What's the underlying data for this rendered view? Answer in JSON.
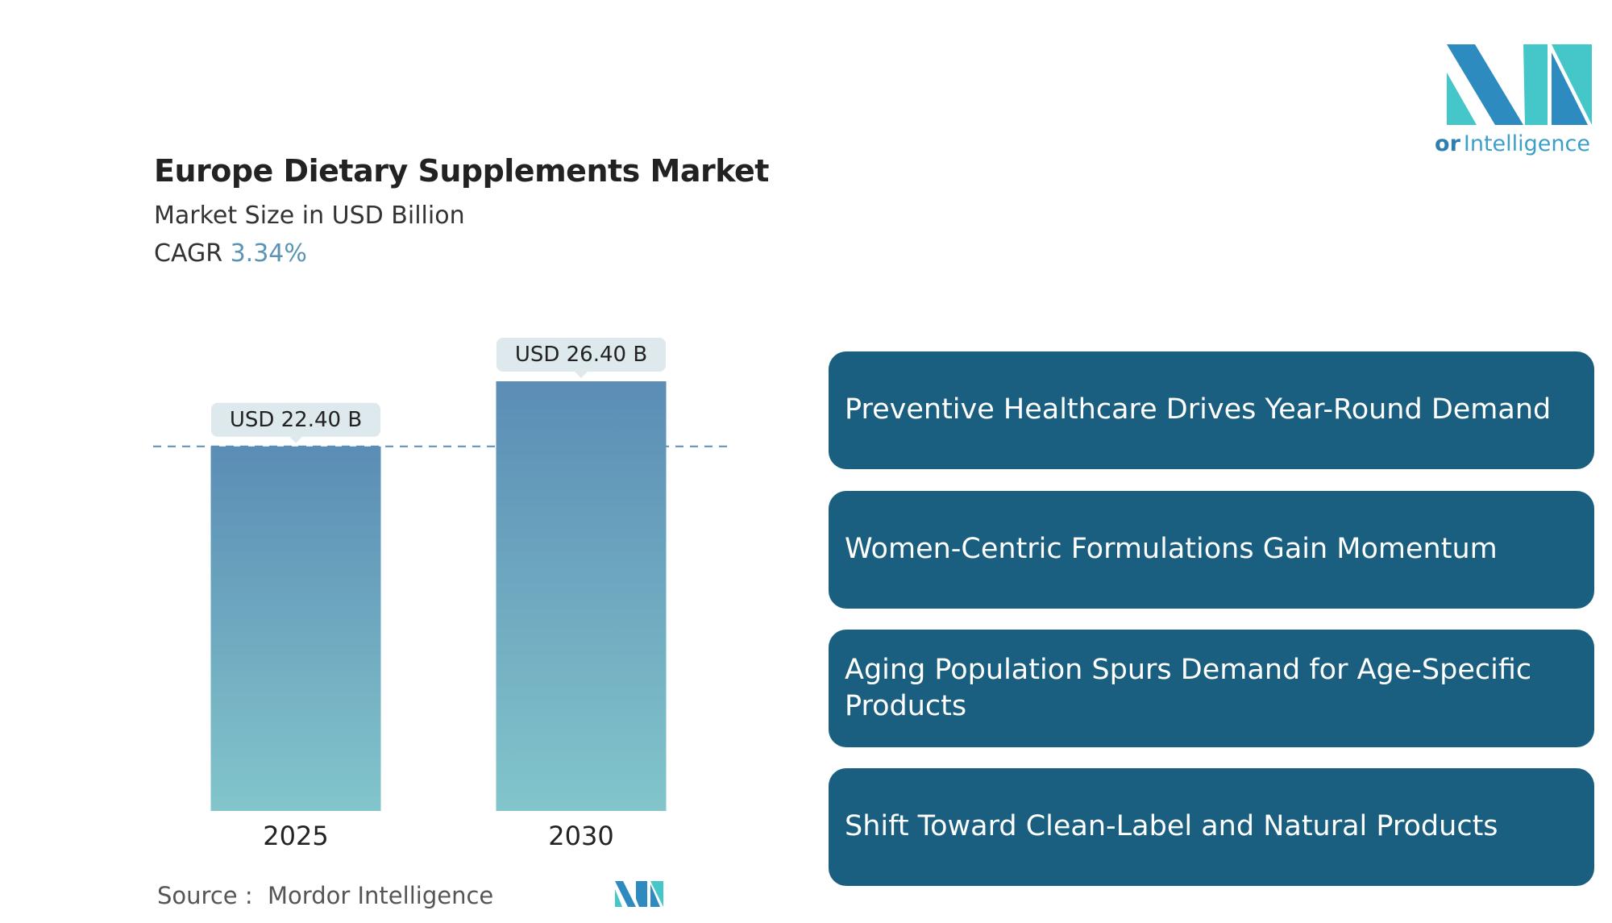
{
  "header": {
    "title": "Europe Dietary Supplements Market",
    "subtitle": "Market Size in USD Billion",
    "cagr_label": "CAGR",
    "cagr_value": "3.34%"
  },
  "chart_data": {
    "type": "bar",
    "categories": [
      "2025",
      "2030"
    ],
    "values": [
      22.4,
      26.4
    ],
    "value_labels": [
      "USD 22.40 B",
      "USD 26.40 B"
    ]
  },
  "highlights": [
    "Preventive Healthcare Drives Year-Round Demand",
    "Women-Centric Formulations Gain Momentum",
    "Aging Population Spurs Demand for Age-Specific Products",
    "Shift Toward Clean-Label and Natural Products"
  ],
  "source": {
    "label": "Source :",
    "name": "Mordor Intelligence"
  },
  "logo": {
    "brand": "Mordor",
    "suffix": "Intelligence"
  }
}
